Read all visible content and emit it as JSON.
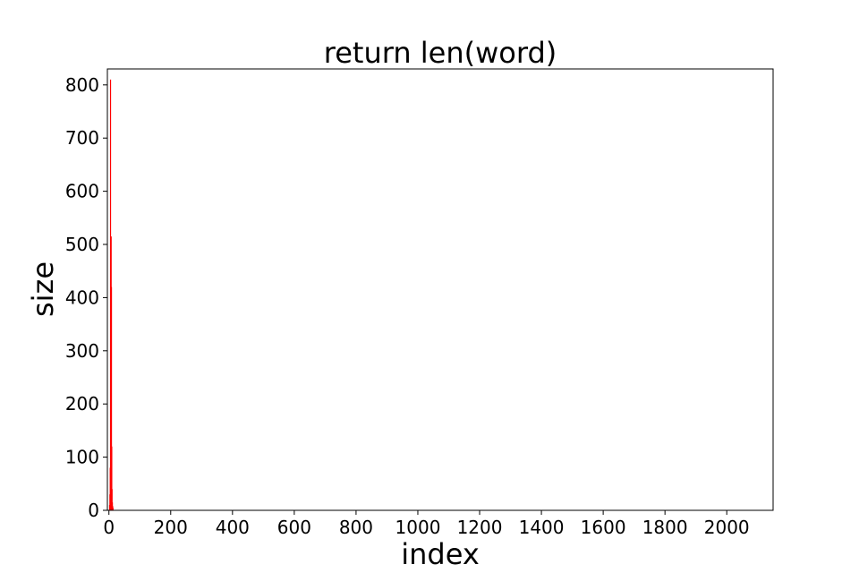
{
  "chart_data": {
    "type": "bar",
    "title": "return len(word)",
    "xlabel": "index",
    "ylabel": "size",
    "xlim": [
      -5,
      2150
    ],
    "ylim": [
      0,
      830
    ],
    "xticks": [
      0,
      200,
      400,
      600,
      800,
      1000,
      1200,
      1400,
      1600,
      1800,
      2000
    ],
    "yticks": [
      0,
      100,
      200,
      300,
      400,
      500,
      600,
      700,
      800
    ],
    "bar_color": "#ff0000",
    "grid": false,
    "x": [
      1,
      2,
      3,
      4,
      5,
      6,
      7,
      8,
      9,
      10,
      11,
      12
    ],
    "values": [
      10,
      30,
      80,
      810,
      200,
      515,
      420,
      120,
      40,
      15,
      8,
      5
    ]
  }
}
